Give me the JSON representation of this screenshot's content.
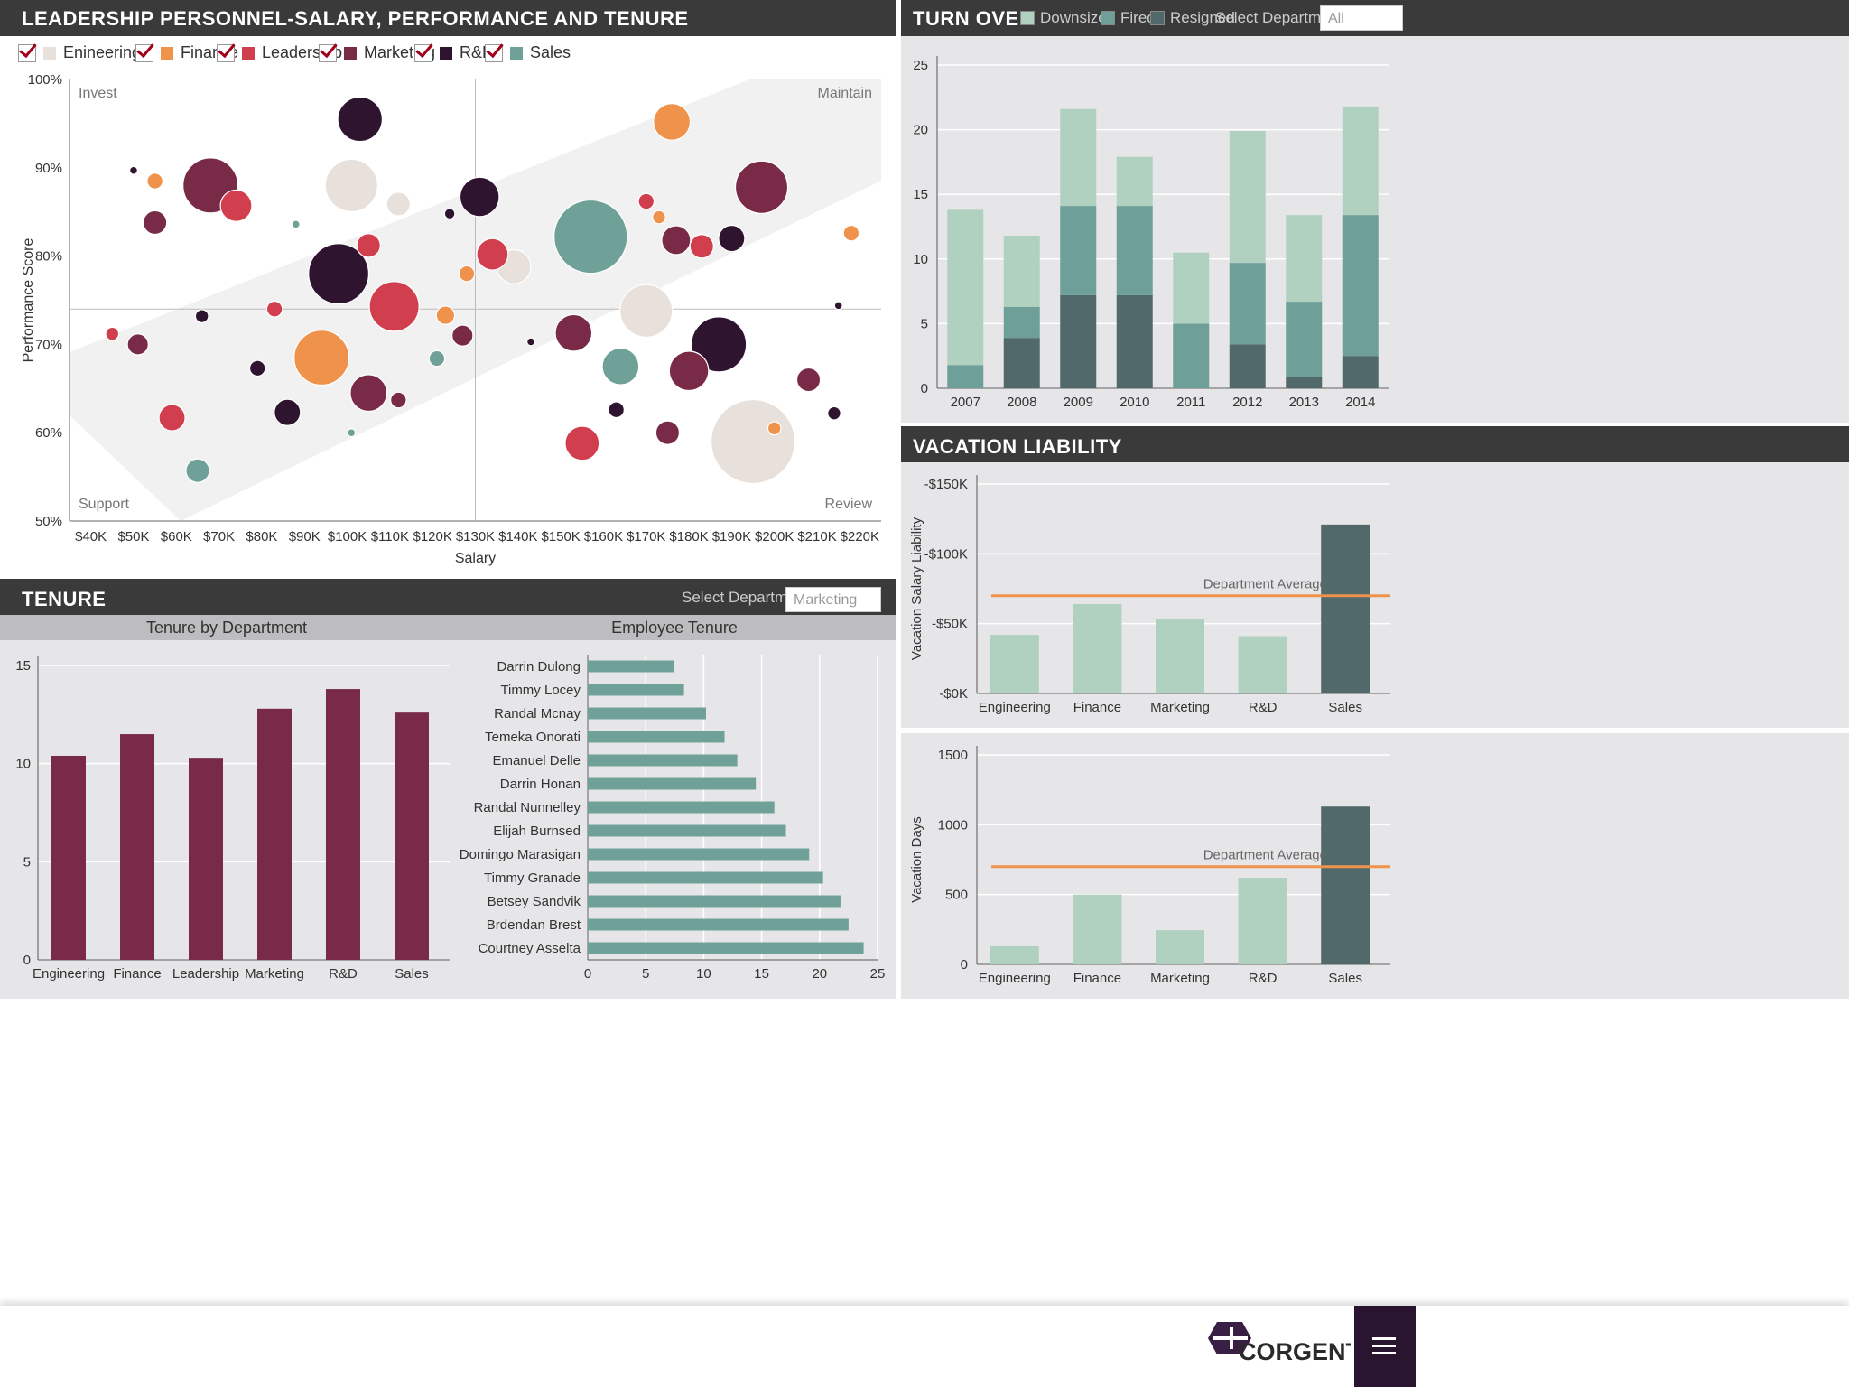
{
  "scatter": {
    "title": "LEADERSHIP PERSONNEL-SALARY, PERFORMANCE AND TENURE",
    "departments": [
      {
        "name": "Enineering",
        "color": "#e8e0da"
      },
      {
        "name": "Finance",
        "color": "#ef924c"
      },
      {
        "name": "Leadership",
        "color": "#d13f4e"
      },
      {
        "name": "Marketing",
        "color": "#782a47"
      },
      {
        "name": "R&D",
        "color": "#2f1430"
      },
      {
        "name": "Sales",
        "color": "#6fa199"
      }
    ],
    "quadrants": {
      "tl": "Invest",
      "tr": "Maintain",
      "bl": "Support",
      "br": "Review"
    }
  },
  "turnover": {
    "title": "TURN OVER",
    "legend": [
      {
        "name": "Downsized",
        "color": "#b0d1c0"
      },
      {
        "name": "Fired",
        "color": "#6e9f98"
      },
      {
        "name": "Resigned",
        "color": "#51696b"
      }
    ],
    "select_label": "Select Department",
    "select_value": "All"
  },
  "vacation": {
    "title": "VACATION LIABILITY",
    "avg_label_1": "Department Average",
    "avg_label_2": "Department Average"
  },
  "tenure": {
    "title": "TENURE",
    "select_label": "Select Department",
    "select_value": "Marketing",
    "left_title": "Tenure by Department",
    "right_title": "Employee Tenure"
  },
  "footer": {
    "brand": "CORGENT"
  },
  "chart_data": [
    {
      "type": "scatter",
      "title": "LEADERSHIP PERSONNEL-SALARY, PERFORMANCE AND TENURE",
      "xlabel": "Salary",
      "ylabel": "Performance Score",
      "xlim": [
        35000,
        225000
      ],
      "ylim": [
        50,
        100
      ],
      "xticks": [
        "$40K",
        "$50K",
        "$60K",
        "$70K",
        "$80K",
        "$90K",
        "$100K",
        "$110K",
        "$120K",
        "$130K",
        "$140K",
        "$150K",
        "$160K",
        "$170K",
        "$180K",
        "$190K",
        "$200K",
        "$210K",
        "$220K"
      ],
      "yticks": [
        "50%",
        "60%",
        "70%",
        "80%",
        "90%",
        "100%"
      ],
      "quadrant_lines": {
        "x": 130000,
        "y": 74
      },
      "points": [
        {
          "x": 50000,
          "y": 89.7,
          "dept": "R&D",
          "size": 3
        },
        {
          "x": 55000,
          "y": 88.5,
          "dept": "Finance",
          "size": 6
        },
        {
          "x": 55000,
          "y": 83.8,
          "dept": "Marketing",
          "size": 9
        },
        {
          "x": 68000,
          "y": 88,
          "dept": "Marketing",
          "size": 21
        },
        {
          "x": 74000,
          "y": 85.7,
          "dept": "Leadership",
          "size": 12
        },
        {
          "x": 103000,
          "y": 95.5,
          "dept": "R&D",
          "size": 17
        },
        {
          "x": 101000,
          "y": 88,
          "dept": "Enineering",
          "size": 20
        },
        {
          "x": 112000,
          "y": 85.9,
          "dept": "Enineering",
          "size": 9
        },
        {
          "x": 124000,
          "y": 84.8,
          "dept": "R&D",
          "size": 4
        },
        {
          "x": 131000,
          "y": 86.7,
          "dept": "R&D",
          "size": 15
        },
        {
          "x": 88000,
          "y": 83.6,
          "dept": "Sales",
          "size": 3
        },
        {
          "x": 105000,
          "y": 81.2,
          "dept": "Leadership",
          "size": 9
        },
        {
          "x": 98000,
          "y": 78,
          "dept": "R&D",
          "size": 23
        },
        {
          "x": 111000,
          "y": 74.3,
          "dept": "Leadership",
          "size": 19
        },
        {
          "x": 128000,
          "y": 78,
          "dept": "Finance",
          "size": 6
        },
        {
          "x": 134000,
          "y": 80.2,
          "dept": "Leadership",
          "size": 12
        },
        {
          "x": 139000,
          "y": 78.8,
          "dept": "Enineering",
          "size": 13
        },
        {
          "x": 157000,
          "y": 82.2,
          "dept": "Sales",
          "size": 28
        },
        {
          "x": 170000,
          "y": 86.2,
          "dept": "Leadership",
          "size": 6
        },
        {
          "x": 173000,
          "y": 84.4,
          "dept": "Finance",
          "size": 5
        },
        {
          "x": 176000,
          "y": 95.2,
          "dept": "Finance",
          "size": 14
        },
        {
          "x": 177000,
          "y": 81.8,
          "dept": "Marketing",
          "size": 11
        },
        {
          "x": 183000,
          "y": 81.1,
          "dept": "Leadership",
          "size": 9
        },
        {
          "x": 190000,
          "y": 82,
          "dept": "R&D",
          "size": 10
        },
        {
          "x": 197000,
          "y": 87.8,
          "dept": "Marketing",
          "size": 20
        },
        {
          "x": 218000,
          "y": 82.6,
          "dept": "Finance",
          "size": 6
        },
        {
          "x": 66000,
          "y": 73.2,
          "dept": "R&D",
          "size": 5
        },
        {
          "x": 83000,
          "y": 74,
          "dept": "Leadership",
          "size": 6
        },
        {
          "x": 45000,
          "y": 71.2,
          "dept": "Leadership",
          "size": 5
        },
        {
          "x": 51000,
          "y": 70,
          "dept": "Marketing",
          "size": 8
        },
        {
          "x": 79000,
          "y": 67.3,
          "dept": "R&D",
          "size": 6
        },
        {
          "x": 94000,
          "y": 68.5,
          "dept": "Finance",
          "size": 21
        },
        {
          "x": 123000,
          "y": 73.3,
          "dept": "Finance",
          "size": 7
        },
        {
          "x": 127000,
          "y": 71,
          "dept": "Marketing",
          "size": 8
        },
        {
          "x": 121000,
          "y": 68.4,
          "dept": "Sales",
          "size": 6
        },
        {
          "x": 143000,
          "y": 70.3,
          "dept": "R&D",
          "size": 3
        },
        {
          "x": 153000,
          "y": 71.3,
          "dept": "Marketing",
          "size": 14
        },
        {
          "x": 170000,
          "y": 73.8,
          "dept": "Enineering",
          "size": 20
        },
        {
          "x": 187000,
          "y": 70,
          "dept": "R&D",
          "size": 21
        },
        {
          "x": 164000,
          "y": 67.5,
          "dept": "Sales",
          "size": 14
        },
        {
          "x": 180000,
          "y": 67,
          "dept": "Marketing",
          "size": 15
        },
        {
          "x": 215000,
          "y": 74.4,
          "dept": "R&D",
          "size": 3
        },
        {
          "x": 208000,
          "y": 66,
          "dept": "Marketing",
          "size": 9
        },
        {
          "x": 105000,
          "y": 64.5,
          "dept": "Marketing",
          "size": 14
        },
        {
          "x": 112000,
          "y": 63.7,
          "dept": "Marketing",
          "size": 6
        },
        {
          "x": 86000,
          "y": 62.3,
          "dept": "R&D",
          "size": 10
        },
        {
          "x": 59000,
          "y": 61.7,
          "dept": "Leadership",
          "size": 10
        },
        {
          "x": 101000,
          "y": 60,
          "dept": "Sales",
          "size": 3
        },
        {
          "x": 65000,
          "y": 55.7,
          "dept": "Sales",
          "size": 9
        },
        {
          "x": 163000,
          "y": 62.6,
          "dept": "R&D",
          "size": 6
        },
        {
          "x": 155000,
          "y": 58.8,
          "dept": "Leadership",
          "size": 13
        },
        {
          "x": 175000,
          "y": 60,
          "dept": "Marketing",
          "size": 9
        },
        {
          "x": 195000,
          "y": 59,
          "dept": "Enineering",
          "size": 32
        },
        {
          "x": 200000,
          "y": 60.5,
          "dept": "Finance",
          "size": 5
        },
        {
          "x": 214000,
          "y": 62.2,
          "dept": "R&D",
          "size": 5
        }
      ]
    },
    {
      "type": "bar",
      "title": "TURN OVER",
      "stacked": true,
      "categories": [
        "2007",
        "2008",
        "2009",
        "2010",
        "2011",
        "2012",
        "2013",
        "2014"
      ],
      "ylim": [
        0,
        25
      ],
      "yticks": [
        0,
        5,
        10,
        15,
        20,
        25
      ],
      "series": [
        {
          "name": "Resigned",
          "values": [
            0,
            3.9,
            7.2,
            7.2,
            0,
            3.4,
            0.9,
            2.5
          ]
        },
        {
          "name": "Fired",
          "values": [
            1.8,
            2.4,
            6.9,
            6.9,
            5,
            6.3,
            5.8,
            10.9
          ]
        },
        {
          "name": "Downsized",
          "values": [
            12,
            5.5,
            7.5,
            3.8,
            5.5,
            10.2,
            6.7,
            8.4
          ]
        }
      ]
    },
    {
      "type": "bar",
      "title": "VACATION LIABILITY",
      "ylabel": "Vacation Salary Liability",
      "categories": [
        "Engineering",
        "Finance",
        "Marketing",
        "R&D",
        "Sales"
      ],
      "values": [
        42000,
        64000,
        53000,
        41000,
        121000
      ],
      "ylim": [
        0,
        150000
      ],
      "yticks": [
        "-$0K",
        "-$50K",
        "-$100K",
        "-$150K"
      ],
      "average": 70000,
      "average_label": "Department Average"
    },
    {
      "type": "bar",
      "ylabel": "Vacation Days",
      "categories": [
        "Engineering",
        "Finance",
        "Marketing",
        "R&D",
        "Sales"
      ],
      "values": [
        130,
        500,
        245,
        620,
        1130
      ],
      "ylim": [
        0,
        1500
      ],
      "yticks": [
        0,
        500,
        1000,
        1500
      ],
      "average": 700,
      "average_label": "Department Average"
    },
    {
      "type": "bar",
      "title": "Tenure by Department",
      "categories": [
        "Engineering",
        "Finance",
        "Leadership",
        "Marketing",
        "R&D",
        "Sales"
      ],
      "values": [
        10.4,
        11.5,
        10.3,
        12.8,
        13.8,
        12.6
      ],
      "ylim": [
        0,
        15
      ],
      "yticks": [
        0,
        5,
        10,
        15
      ]
    },
    {
      "type": "bar",
      "orientation": "horizontal",
      "title": "Employee Tenure",
      "categories": [
        "Darrin Dulong",
        "Timmy Locey",
        "Randal Mcnay",
        "Temeka Onorati",
        "Emanuel Delle",
        "Darrin Honan",
        "Randal Nunnelley",
        "Elijah Burnsed",
        "Domingo Marasigan",
        "Timmy Granade",
        "Betsey Sandvik",
        "Brdendan Brest",
        "Courtney Asselta"
      ],
      "values": [
        7.4,
        8.3,
        10.2,
        11.8,
        12.9,
        14.5,
        16.1,
        17.1,
        19.1,
        20.3,
        21.8,
        22.5,
        23.8
      ],
      "xlim": [
        0,
        25
      ],
      "xticks": [
        0,
        5,
        10,
        15,
        20,
        25
      ]
    }
  ]
}
